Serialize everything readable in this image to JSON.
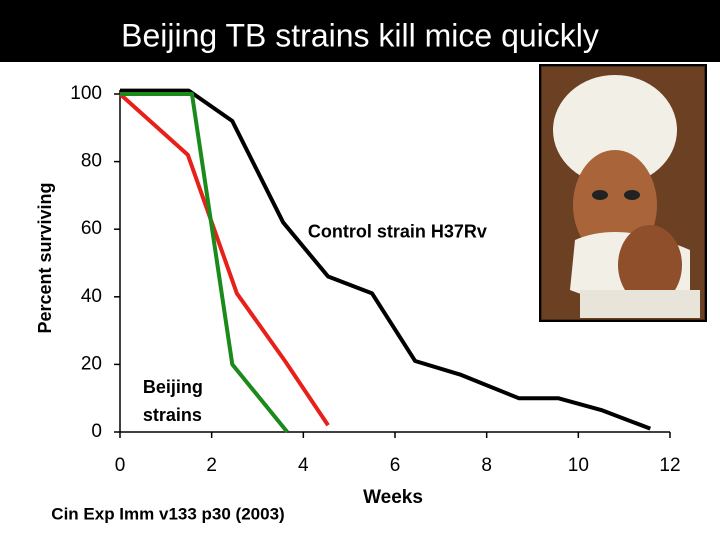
{
  "chart_data": {
    "type": "line",
    "title": "Beijing TB strains kill mice quickly",
    "x_label": "Weeks",
    "y_label": "Percent surviving",
    "source": "Cin Exp Imm v133 p30 (2003)",
    "annotations": [
      {
        "lines": [
          "Control strain H37Rv"
        ],
        "x": 4.1,
        "y": 59
      },
      {
        "lines": [
          "Beijing",
          "strains"
        ],
        "x": 0.5,
        "y": 13
      }
    ],
    "xlim": [
      0,
      12
    ],
    "ylim": [
      0,
      100
    ],
    "xticks": [
      0,
      2,
      4,
      6,
      8,
      10,
      12
    ],
    "yticks": [
      0,
      20,
      40,
      60,
      80,
      100
    ],
    "series": [
      {
        "color": "#000000",
        "x": [
          0,
          1.5,
          2.45,
          3.56,
          4.54,
          5.5,
          6.44,
          7.42,
          8.7,
          9.56,
          10.5,
          11.57
        ],
        "values": [
          101,
          101,
          92,
          62,
          46,
          41,
          21,
          17,
          10,
          10,
          6.5,
          1
        ]
      },
      {
        "color": "#e8201a",
        "x": [
          0,
          1.48,
          2.55,
          3.6,
          4.54
        ],
        "values": [
          100,
          82,
          41,
          21,
          2
        ]
      },
      {
        "color": "#1a8a1a",
        "x": [
          0,
          1.57,
          2.45,
          3.65
        ],
        "values": [
          100,
          100,
          20,
          0
        ]
      }
    ]
  }
}
